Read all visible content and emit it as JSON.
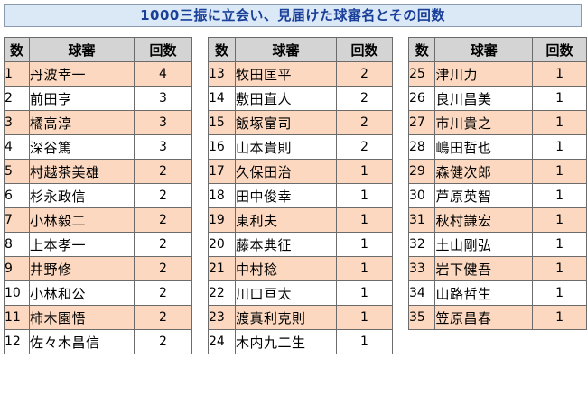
{
  "title": "1000三振に立会い、見届けた球審名とその回数",
  "headers": {
    "num": "数",
    "name": "球審",
    "count": "回数"
  },
  "columns": [
    [
      {
        "n": "1",
        "name": "丹波幸一",
        "c": "4"
      },
      {
        "n": "2",
        "name": "前田亨",
        "c": "3"
      },
      {
        "n": "3",
        "name": "橘高淳",
        "c": "3"
      },
      {
        "n": "4",
        "name": "深谷篤",
        "c": "3"
      },
      {
        "n": "5",
        "name": "村越茶美雄",
        "c": "2"
      },
      {
        "n": "6",
        "name": "杉永政信",
        "c": "2"
      },
      {
        "n": "7",
        "name": "小林毅二",
        "c": "2"
      },
      {
        "n": "8",
        "name": "上本孝一",
        "c": "2"
      },
      {
        "n": "9",
        "name": "井野修",
        "c": "2"
      },
      {
        "n": "10",
        "name": "小林和公",
        "c": "2"
      },
      {
        "n": "11",
        "name": "柿木園悟",
        "c": "2"
      },
      {
        "n": "12",
        "name": "佐々木昌信",
        "c": "2"
      }
    ],
    [
      {
        "n": "13",
        "name": "牧田匡平",
        "c": "2"
      },
      {
        "n": "14",
        "name": "敷田直人",
        "c": "2"
      },
      {
        "n": "15",
        "name": "飯塚富司",
        "c": "2"
      },
      {
        "n": "16",
        "name": "山本貴則",
        "c": "2"
      },
      {
        "n": "17",
        "name": "久保田治",
        "c": "1"
      },
      {
        "n": "18",
        "name": "田中俊幸",
        "c": "1"
      },
      {
        "n": "19",
        "name": "東利夫",
        "c": "1"
      },
      {
        "n": "20",
        "name": "藤本典征",
        "c": "1"
      },
      {
        "n": "21",
        "name": "中村稔",
        "c": "1"
      },
      {
        "n": "22",
        "name": "川口亘太",
        "c": "1"
      },
      {
        "n": "23",
        "name": "渡真利克則",
        "c": "1"
      },
      {
        "n": "24",
        "name": "木内九二生",
        "c": "1"
      }
    ],
    [
      {
        "n": "25",
        "name": "津川力",
        "c": "1"
      },
      {
        "n": "26",
        "name": "良川昌美",
        "c": "1"
      },
      {
        "n": "27",
        "name": "市川貴之",
        "c": "1"
      },
      {
        "n": "28",
        "name": "嶋田哲也",
        "c": "1"
      },
      {
        "n": "29",
        "name": "森健次郎",
        "c": "1"
      },
      {
        "n": "30",
        "name": "芦原英智",
        "c": "1"
      },
      {
        "n": "31",
        "name": "秋村謙宏",
        "c": "1"
      },
      {
        "n": "32",
        "name": "土山剛弘",
        "c": "1"
      },
      {
        "n": "33",
        "name": "岩下健吾",
        "c": "1"
      },
      {
        "n": "34",
        "name": "山路哲生",
        "c": "1"
      },
      {
        "n": "35",
        "name": "笠原昌春",
        "c": "1"
      }
    ]
  ],
  "colors": {
    "highlight_row": "#fbd8bf",
    "header_bg": "#d4d4d4",
    "title_bg": "#dbe9f7",
    "title_text": "#1a3f99"
  }
}
